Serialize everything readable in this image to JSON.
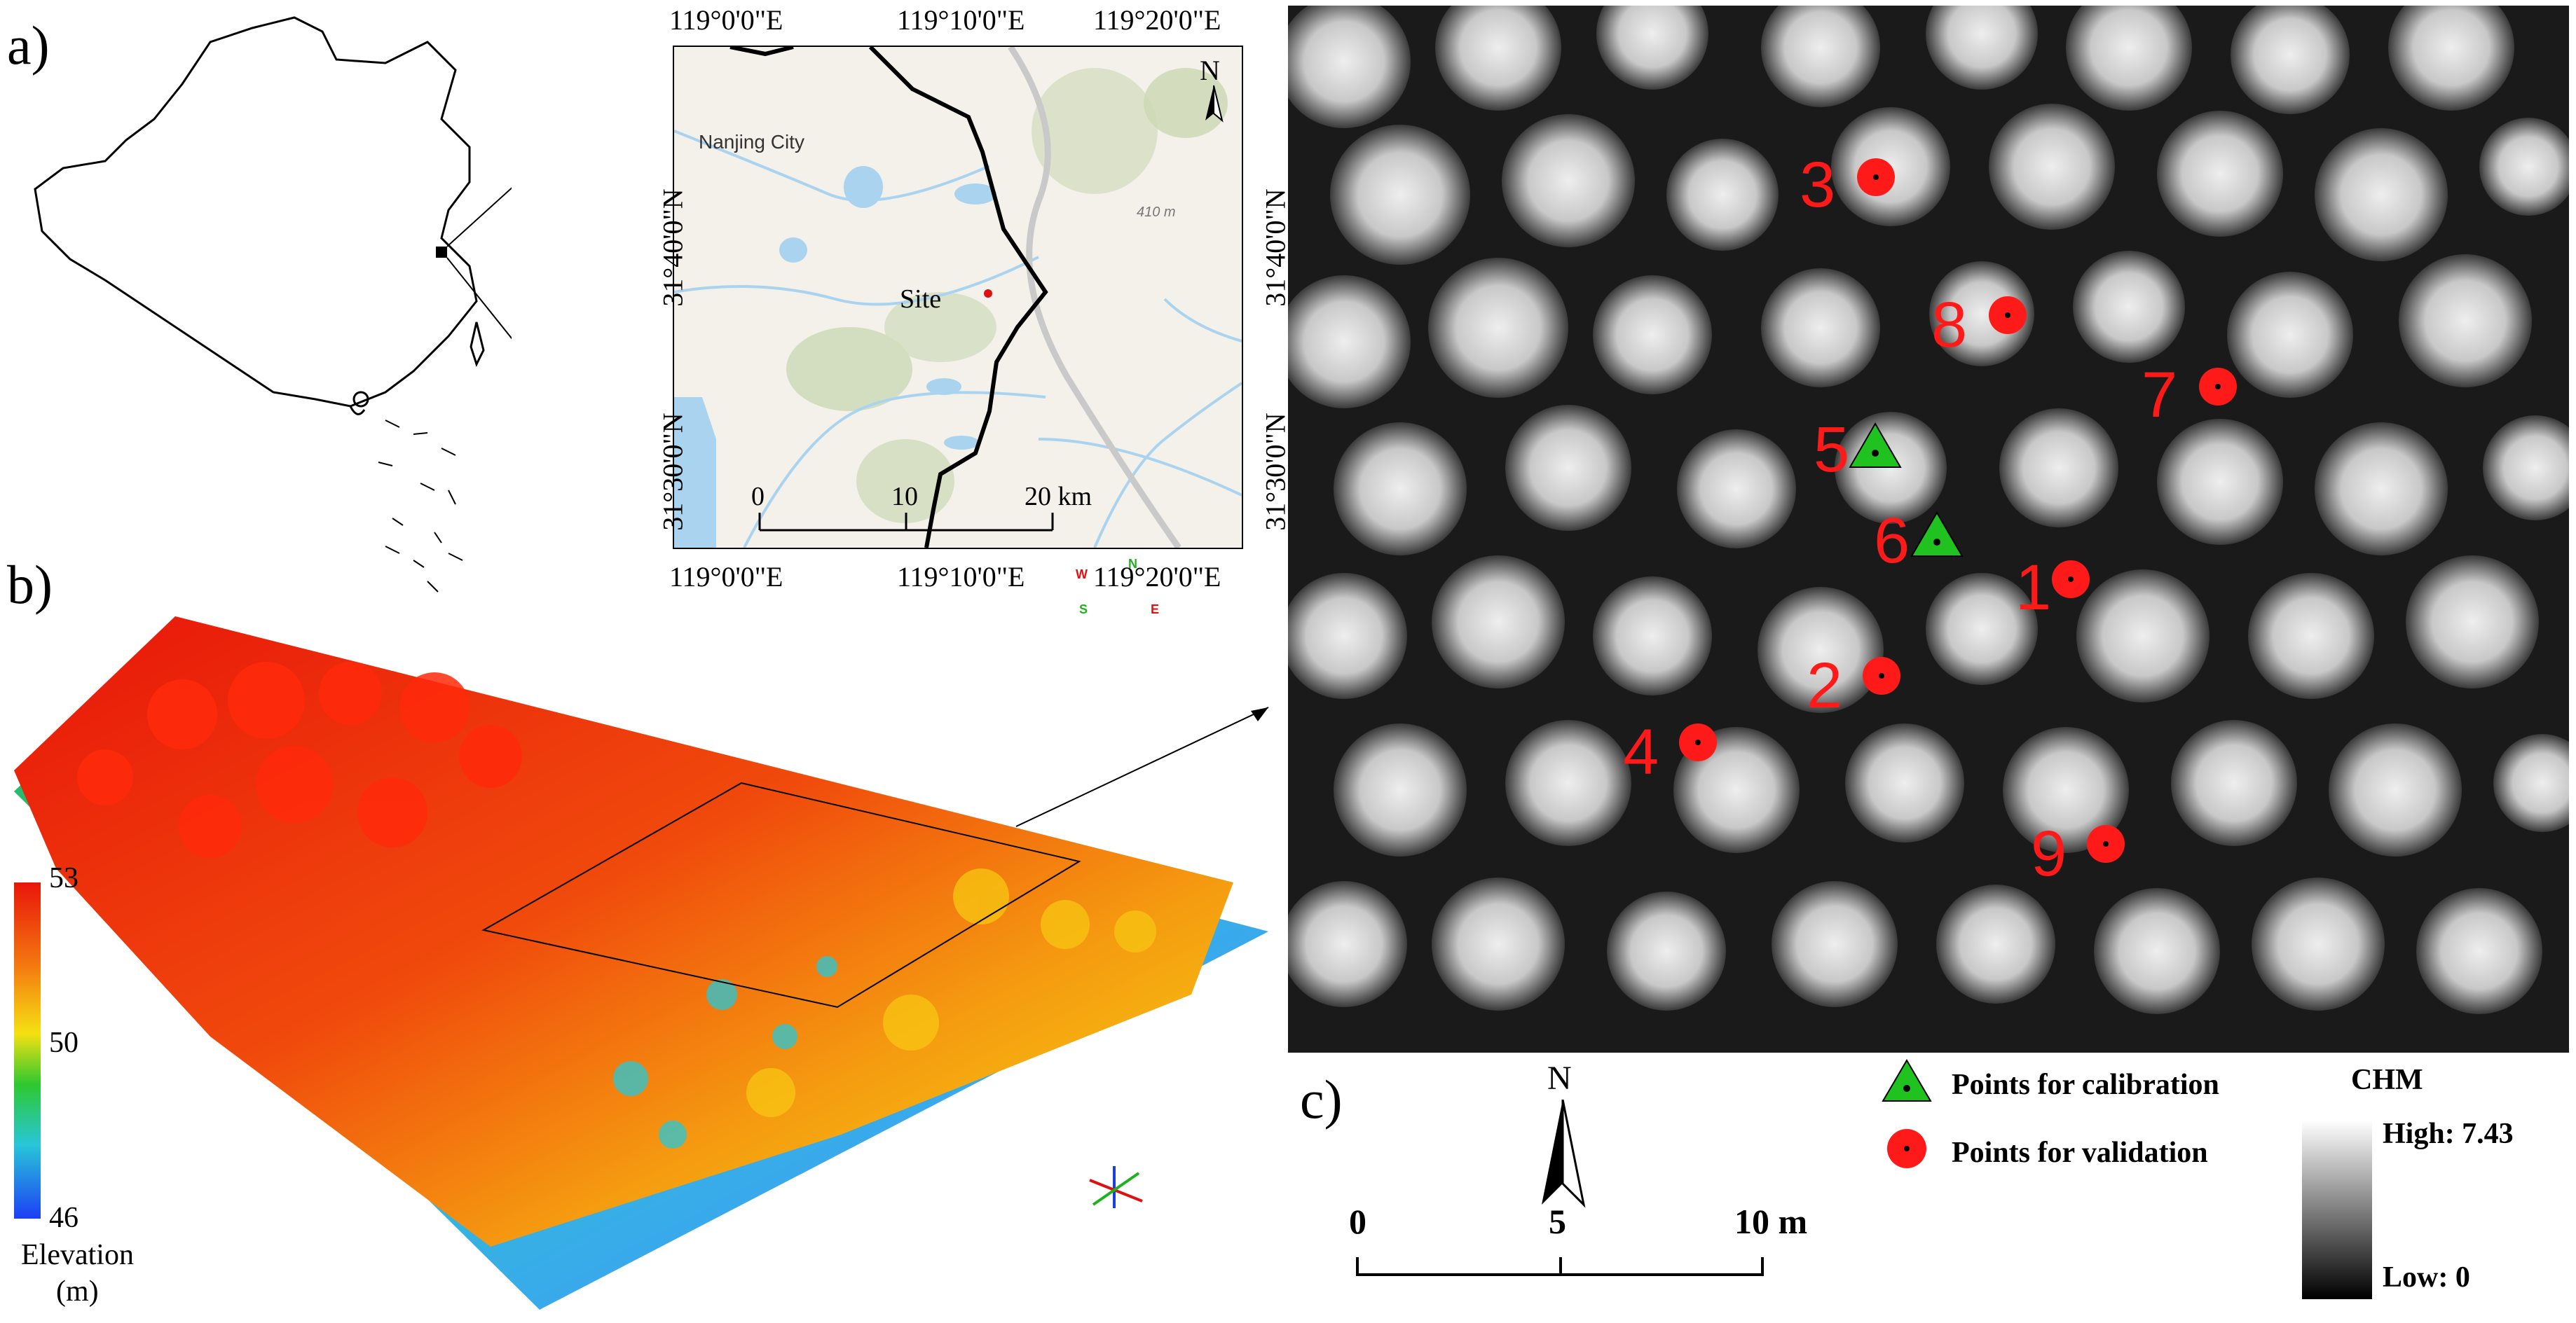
{
  "panels": {
    "a": {
      "label": "a)",
      "top_lon_ticks": [
        "119°0'0\"E",
        "119°10'0\"E",
        "119°20'0\"E"
      ],
      "bottom_lon_ticks": [
        "119°0'0\"E",
        "119°10'0\"E",
        "119°20'0\"E"
      ],
      "lat_ticks": [
        "31°40'0\"N",
        "31°30'0\"N"
      ],
      "city_label": "Nanjing City",
      "site_label": "Site",
      "elevation_mark": "410 m",
      "north_label": "N",
      "scale_labels": [
        "0",
        "10",
        "20 km"
      ]
    },
    "b": {
      "label": "b)",
      "colorbar": {
        "max": "53",
        "mid": "50",
        "min": "46",
        "title": "Elevation",
        "unit": "(m)"
      },
      "compass": {
        "n": "N",
        "e": "E",
        "s": "S",
        "w": "W"
      },
      "colors": {
        "high": "#e8150a",
        "mid": "#f4e112",
        "low": "#1e5df5"
      }
    },
    "c": {
      "label": "c)",
      "lat_ticks": [
        "31°40'0\"N",
        "31°30'0\"N"
      ],
      "north_label": "N",
      "scale_labels": [
        "0",
        "5",
        "10 m"
      ],
      "points": [
        {
          "id": "3",
          "type": "validation"
        },
        {
          "id": "8",
          "type": "validation"
        },
        {
          "id": "7",
          "type": "validation"
        },
        {
          "id": "5",
          "type": "calibration"
        },
        {
          "id": "6",
          "type": "calibration"
        },
        {
          "id": "1",
          "type": "validation"
        },
        {
          "id": "2",
          "type": "validation"
        },
        {
          "id": "4",
          "type": "validation"
        },
        {
          "id": "9",
          "type": "validation"
        }
      ],
      "legend": {
        "calibration": "Points for calibration",
        "validation": "Points for validation",
        "chm_title": "CHM",
        "high": "High: 7.43",
        "low": "Low: 0"
      },
      "colors": {
        "validation": "#ff1a1a",
        "calibration": "#1fc21f"
      }
    }
  }
}
